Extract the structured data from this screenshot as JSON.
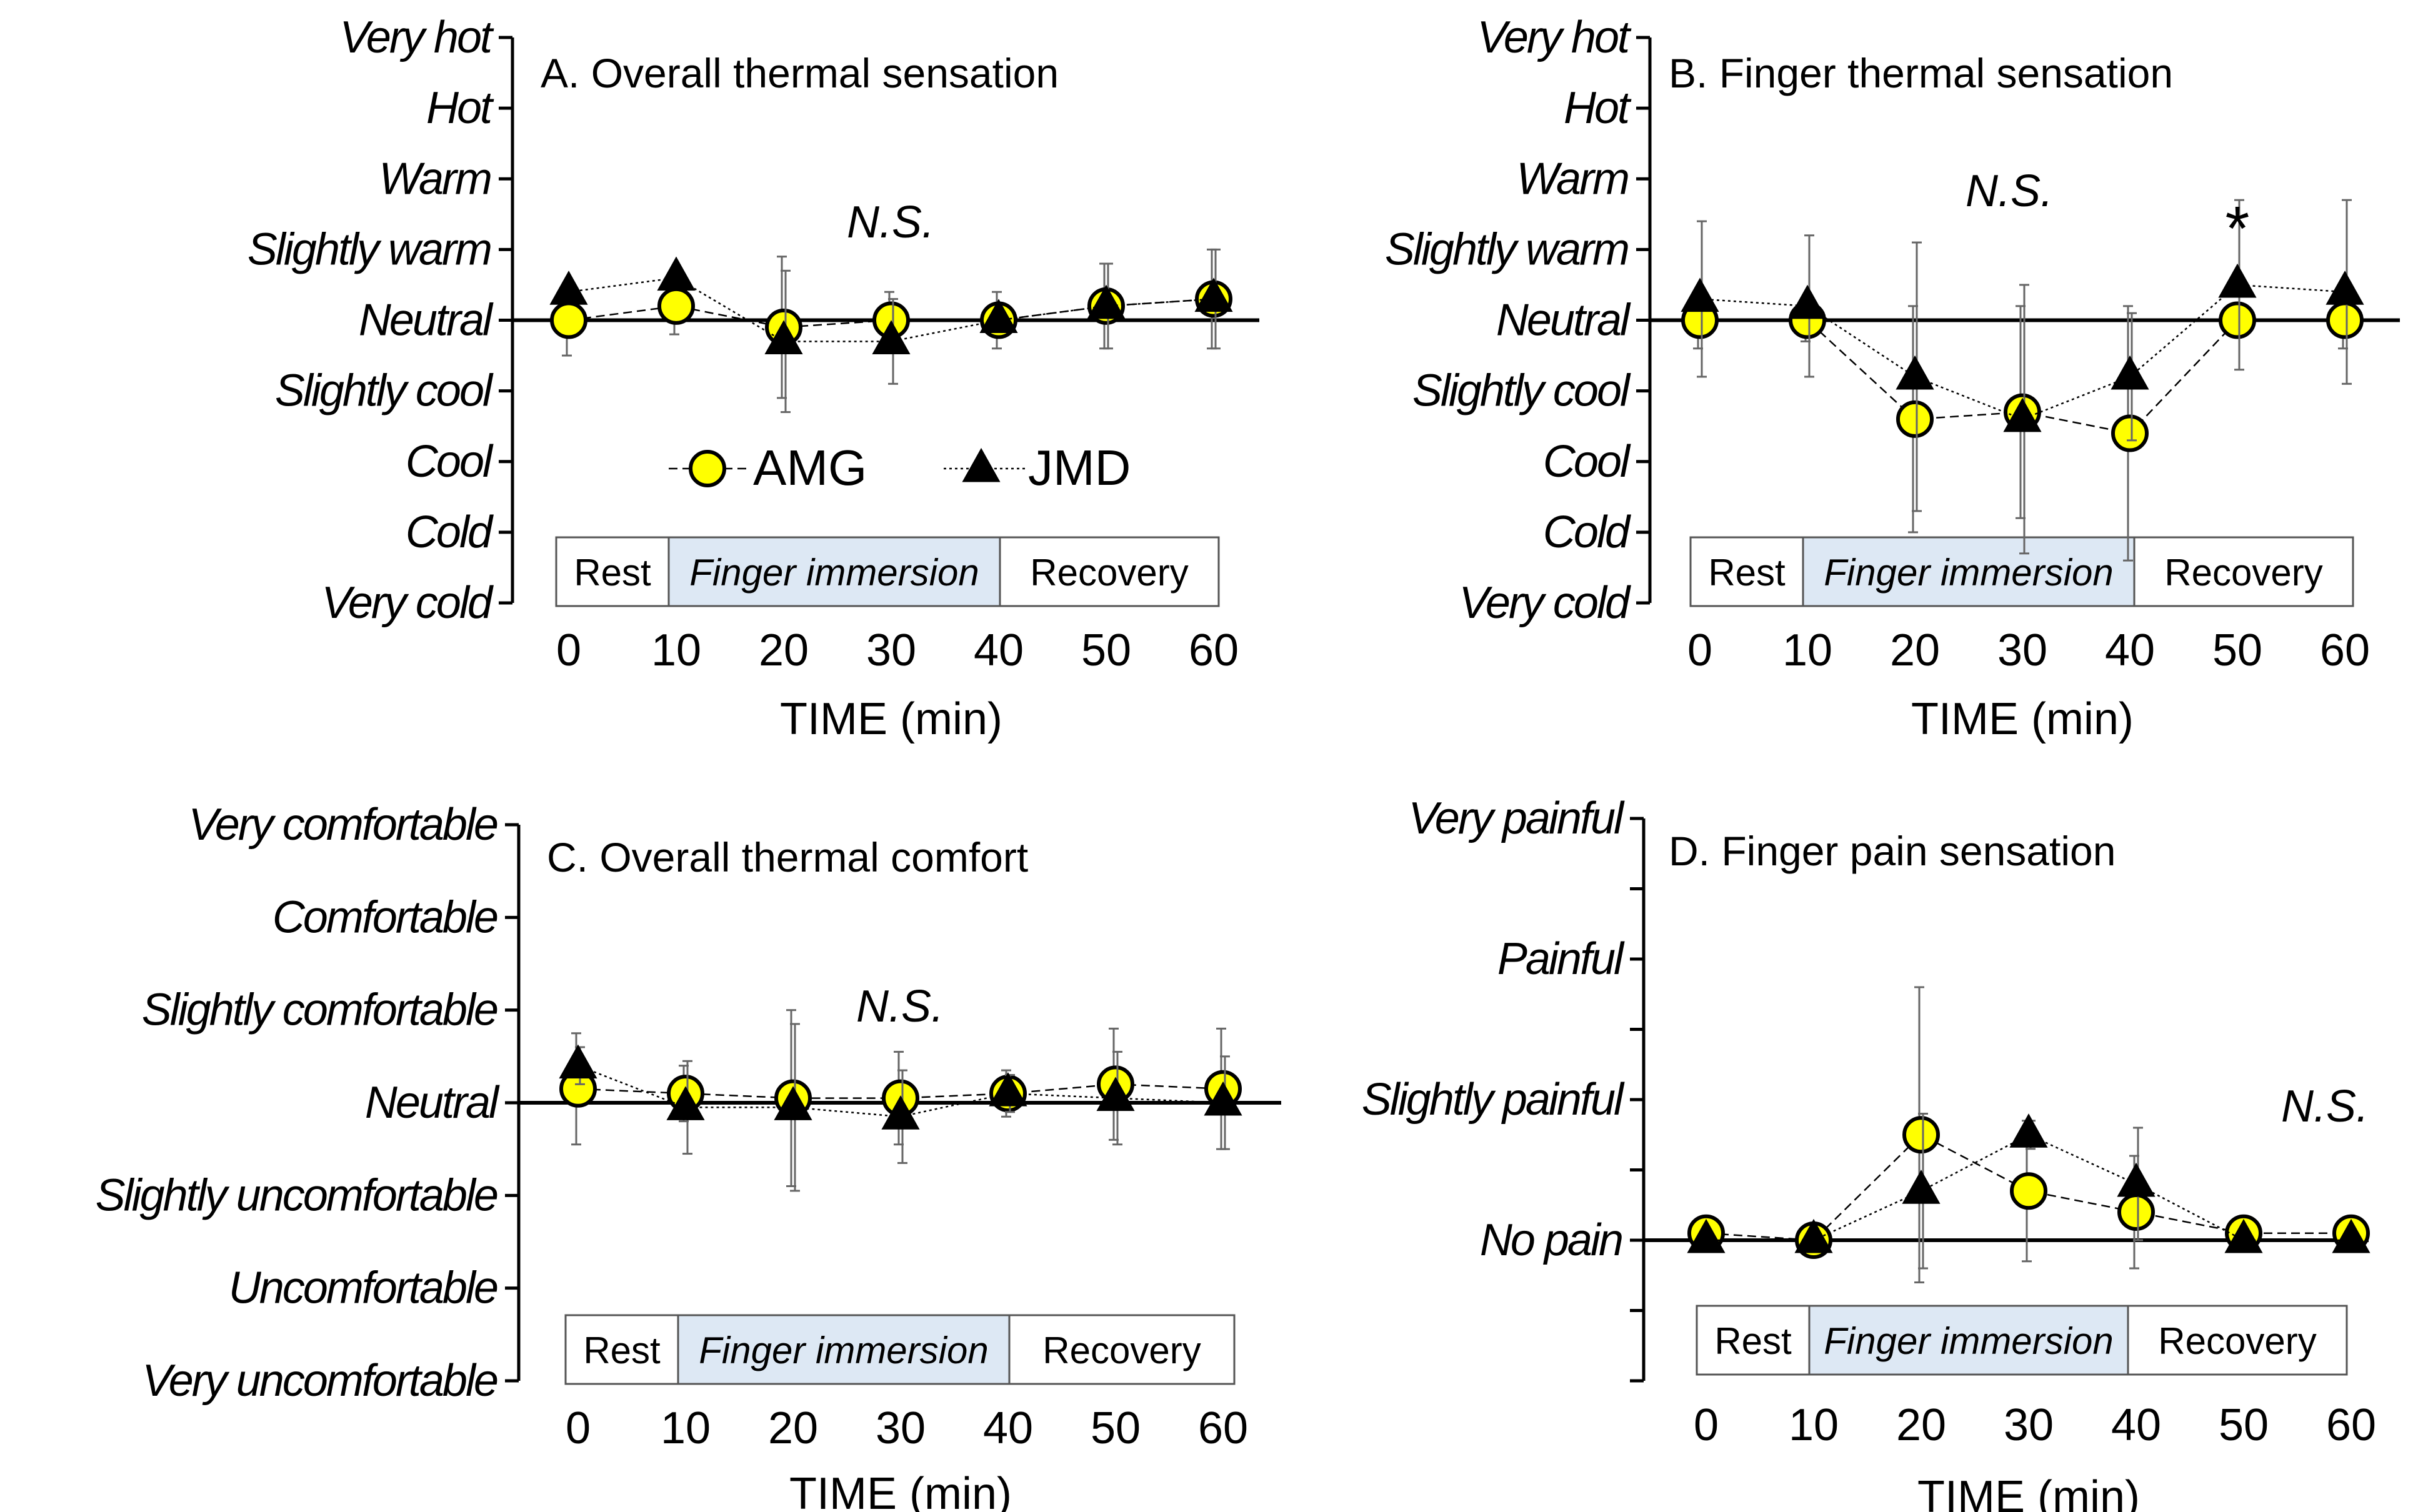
{
  "colors": {
    "amg_fill": "#ffff00",
    "jmd_fill": "#000000",
    "immersion_bg": "#dde8f4",
    "axis": "#000000"
  },
  "legend": {
    "series": [
      "AMG",
      "JMD"
    ]
  },
  "chart_data": [
    {
      "type": "line",
      "title": "A. Overall thermal sensation",
      "annotation": "N.S.",
      "xlabel": "TIME (min)",
      "x": [
        0,
        10,
        20,
        30,
        40,
        50,
        60
      ],
      "ylim": [
        -4,
        4
      ],
      "y_tick_values": [
        4,
        3,
        2,
        1,
        0,
        -1,
        -2,
        -3,
        -4
      ],
      "y_tick_labels": [
        "Very hot",
        "Hot",
        "Warm",
        "Slightly warm",
        "Neutral",
        "Slightly cool",
        "Cool",
        "Cold",
        "Very cold"
      ],
      "phases": [
        "Rest",
        "Finger immersion",
        "Recovery"
      ],
      "series": [
        {
          "name": "AMG",
          "marker": "circle",
          "values": [
            0,
            0.2,
            -0.1,
            0,
            0,
            0.2,
            0.3
          ],
          "err": [
            0.5,
            0.4,
            1.0,
            0.4,
            0.4,
            0.6,
            0.7
          ]
        },
        {
          "name": "JMD",
          "marker": "triangle",
          "values": [
            0.4,
            0.6,
            -0.3,
            -0.3,
            0,
            0.2,
            0.3
          ],
          "err": [
            0,
            0,
            1.0,
            0.6,
            0,
            0.6,
            0.7
          ]
        }
      ]
    },
    {
      "type": "line",
      "title": "B. Finger thermal sensation",
      "annotation": "N.S.",
      "significance_markers": [
        {
          "x": 50,
          "label": "*"
        }
      ],
      "xlabel": "TIME (min)",
      "x": [
        0,
        10,
        20,
        30,
        40,
        50,
        60
      ],
      "ylim": [
        -4,
        4
      ],
      "y_tick_values": [
        4,
        3,
        2,
        1,
        0,
        -1,
        -2,
        -3,
        -4
      ],
      "y_tick_labels": [
        "Very hot",
        "Hot",
        "Warm",
        "Slightly warm",
        "Neutral",
        "Slightly cool",
        "Cool",
        "Cold",
        "Very cold"
      ],
      "phases": [
        "Rest",
        "Finger immersion",
        "Recovery"
      ],
      "series": [
        {
          "name": "AMG",
          "marker": "circle",
          "values": [
            0,
            0,
            -1.4,
            -1.3,
            -1.6,
            0,
            0
          ],
          "err": [
            0.4,
            0.3,
            1.6,
            1.5,
            1.8,
            0,
            0.4
          ]
        },
        {
          "name": "JMD",
          "marker": "triangle",
          "values": [
            0.3,
            0.2,
            -0.8,
            -1.4,
            -0.8,
            0.5,
            0.4
          ],
          "err": [
            1.1,
            1.0,
            1.9,
            1.9,
            0.9,
            1.2,
            1.3
          ]
        }
      ]
    },
    {
      "type": "line",
      "title": "C. Overall thermal comfort",
      "annotation": "N.S.",
      "xlabel": "TIME (min)",
      "x": [
        0,
        10,
        20,
        30,
        40,
        50,
        60
      ],
      "ylim": [
        -3,
        3
      ],
      "y_tick_values": [
        3,
        2,
        1,
        0,
        -1,
        -2,
        -3
      ],
      "y_tick_labels": [
        "Very comfortable",
        "Comfortable",
        "Slightly comfortable",
        "Neutral",
        "Slightly uncomfortable",
        "Uncomfortable",
        "Very uncomfortable"
      ],
      "phases": [
        "Rest",
        "Finger immersion",
        "Recovery"
      ],
      "series": [
        {
          "name": "AMG",
          "marker": "circle",
          "values": [
            0.15,
            0.1,
            0.05,
            0.05,
            0.1,
            0.2,
            0.15
          ],
          "err": [
            0.6,
            0.3,
            0.95,
            0.5,
            0.25,
            0.6,
            0.65
          ]
        },
        {
          "name": "JMD",
          "marker": "triangle",
          "values": [
            0.4,
            -0.05,
            -0.05,
            -0.15,
            0.1,
            0.05,
            0
          ],
          "err": [
            0.2,
            0.5,
            0.9,
            0.5,
            0.2,
            0.5,
            0.5
          ]
        }
      ]
    },
    {
      "type": "line",
      "title": "D. Finger pain sensation",
      "annotation": "N.S.",
      "xlabel": "TIME (min)",
      "x": [
        0,
        10,
        20,
        30,
        40,
        50,
        60
      ],
      "ylim": [
        -1,
        3
      ],
      "y_tick_values": [
        3,
        2,
        1,
        0
      ],
      "y_tick_labels": [
        "Very painful",
        "Painful",
        "Slightly painful",
        "No pain"
      ],
      "phases": [
        "Rest",
        "Finger immersion",
        "Recovery"
      ],
      "series": [
        {
          "name": "AMG",
          "marker": "circle",
          "values": [
            0.05,
            0,
            0.75,
            0.35,
            0.2,
            0.05,
            0.05
          ],
          "err": [
            0.1,
            0.1,
            1.05,
            0.5,
            0.4,
            0.1,
            0.1
          ]
        },
        {
          "name": "JMD",
          "marker": "triangle",
          "values": [
            0,
            0,
            0.35,
            0.75,
            0.4,
            0,
            0
          ],
          "err": [
            0,
            0,
            0.55,
            0.1,
            0.4,
            0,
            0
          ]
        }
      ]
    }
  ]
}
